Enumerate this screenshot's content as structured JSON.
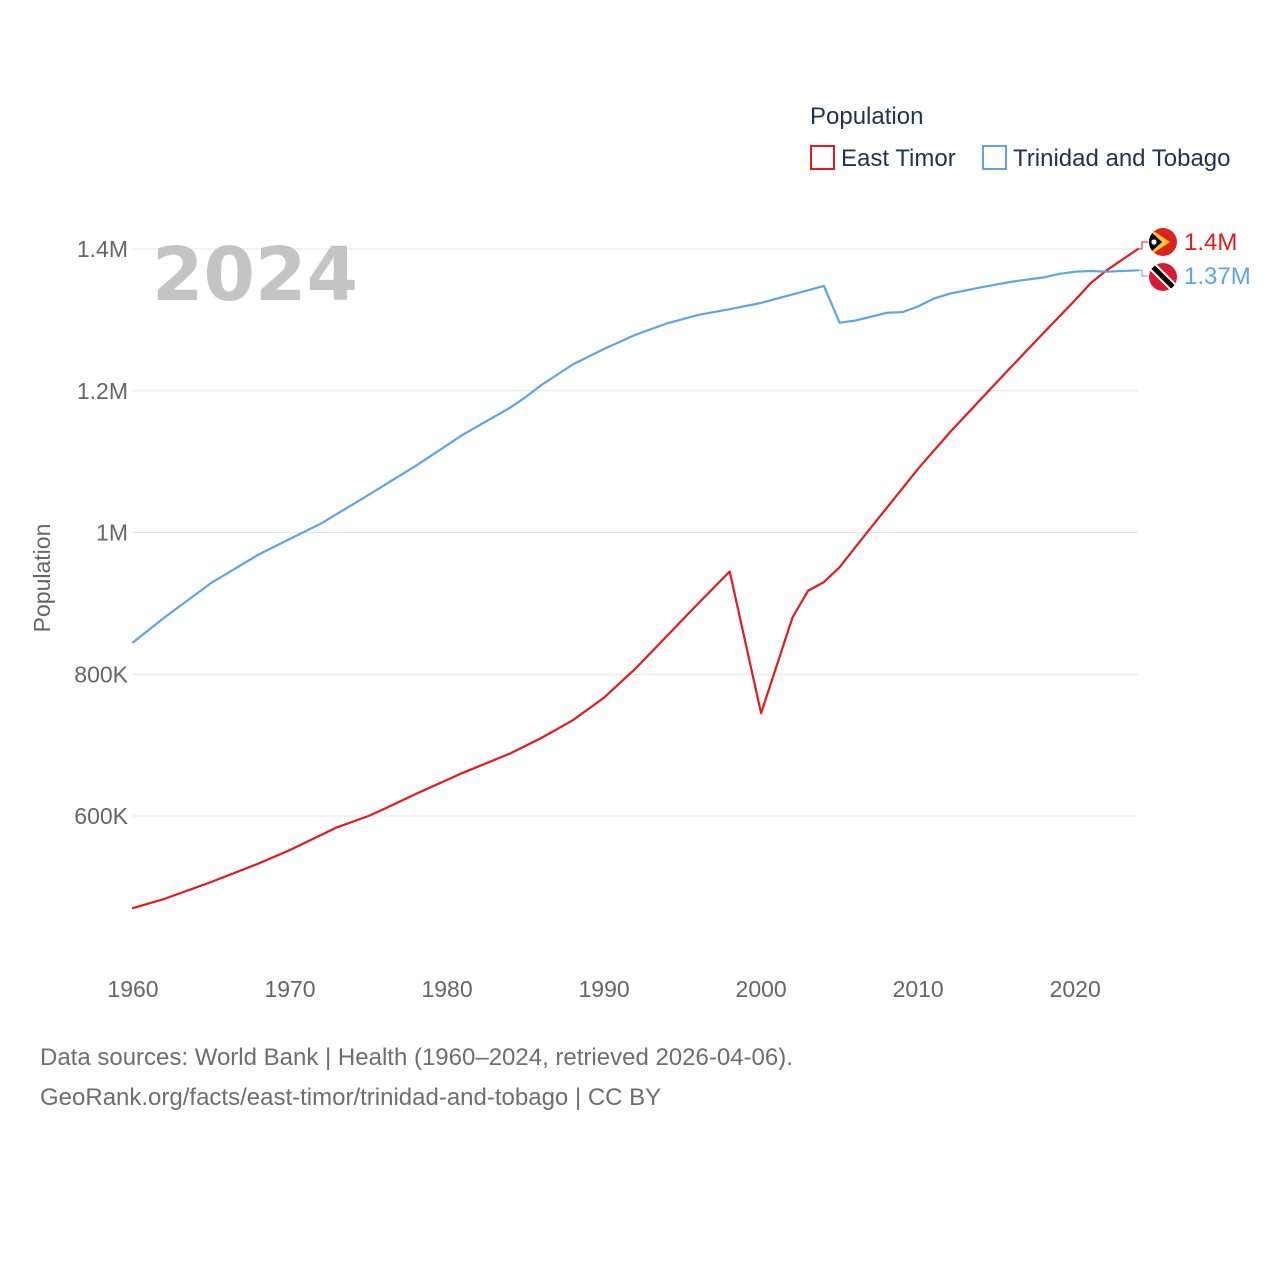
{
  "chart_data": {
    "type": "line",
    "current_year_label": "2024",
    "ylabel": "Population",
    "xlabel": "",
    "legend_title": "Population",
    "legend_position": "top-right",
    "xlim": [
      1960,
      2024
    ],
    "ylim": [
      440000,
      1440000
    ],
    "x_ticks": [
      1960,
      1970,
      1980,
      1990,
      2000,
      2010,
      2020
    ],
    "y_ticks": [
      {
        "value": 600000,
        "label": "600K"
      },
      {
        "value": 800000,
        "label": "800K"
      },
      {
        "value": 1000000,
        "label": "1M"
      },
      {
        "value": 1200000,
        "label": "1.2M"
      },
      {
        "value": 1400000,
        "label": "1.4M"
      }
    ],
    "grid": true,
    "series": [
      {
        "name": "East Timor",
        "color": "#e41a1c",
        "end_label": "1.4M",
        "flag_icon": "east-timor-flag-icon",
        "x": [
          1960,
          1962,
          1965,
          1968,
          1970,
          1973,
          1975,
          1976,
          1978,
          1980,
          1981,
          1984,
          1986,
          1988,
          1990,
          1992,
          1994,
          1996,
          1998,
          2000,
          2002,
          2003,
          2004,
          2005,
          2007,
          2010,
          2012,
          2015,
          2018,
          2020,
          2021,
          2022,
          2024
        ],
        "values": [
          470000,
          483000,
          507000,
          533000,
          552000,
          584000,
          600000,
          610000,
          631000,
          651000,
          661000,
          688000,
          710000,
          735000,
          767000,
          808000,
          854000,
          900000,
          945000,
          745000,
          880000,
          918000,
          930000,
          951000,
          1007000,
          1090000,
          1141000,
          1212000,
          1282000,
          1328000,
          1352000,
          1370000,
          1400000
        ]
      },
      {
        "name": "Trinidad and Tobago",
        "color": "#5da5e8",
        "end_label": "1.37M",
        "flag_icon": "trinidad-and-tobago-flag-icon",
        "x": [
          1960,
          1962,
          1965,
          1968,
          1970,
          1972,
          1975,
          1978,
          1981,
          1984,
          1985,
          1986,
          1988,
          1990,
          1992,
          1994,
          1996,
          1998,
          2000,
          2002,
          2004,
          2005,
          2006,
          2008,
          2009,
          2010,
          2011,
          2012,
          2014,
          2016,
          2018,
          2019,
          2020,
          2021,
          2022,
          2024
        ],
        "values": [
          845000,
          880000,
          929000,
          969000,
          991000,
          1013000,
          1053000,
          1094000,
          1138000,
          1176000,
          1191000,
          1208000,
          1237000,
          1259000,
          1279000,
          1295000,
          1307000,
          1315000,
          1324000,
          1336000,
          1348000,
          1296000,
          1299000,
          1310000,
          1311000,
          1319000,
          1330000,
          1337000,
          1346000,
          1354000,
          1360000,
          1365000,
          1368000,
          1369000,
          1368000,
          1370000
        ]
      }
    ]
  },
  "footer": {
    "line1": "Data sources: World Bank | Health (1960–2024, retrieved 2026-04-06).",
    "line2": "GeoRank.org/facts/east-timor/trinidad-and-tobago | CC BY"
  }
}
